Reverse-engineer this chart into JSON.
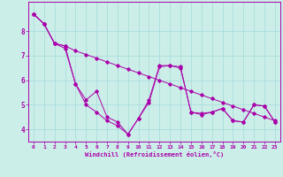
{
  "xlabel": "Windchill (Refroidissement éolien,°C)",
  "bg_color": "#cceee8",
  "line_color": "#aa00aa",
  "grid_color": "#aadddd",
  "xlim": [
    -0.5,
    23.5
  ],
  "ylim": [
    3.5,
    9.2
  ],
  "xticks": [
    0,
    1,
    2,
    3,
    4,
    5,
    6,
    7,
    8,
    9,
    10,
    11,
    12,
    13,
    14,
    15,
    16,
    17,
    18,
    19,
    20,
    21,
    22,
    23
  ],
  "yticks": [
    4,
    5,
    6,
    7,
    8
  ],
  "series": [
    [
      8.7,
      8.3,
      7.5,
      7.4,
      5.85,
      5.0,
      4.7,
      4.35,
      4.15,
      3.8,
      4.45,
      5.1,
      6.55,
      6.6,
      6.55,
      4.7,
      4.65,
      4.7,
      4.85,
      4.35,
      4.3,
      5.0,
      4.95,
      4.3
    ],
    [
      8.7,
      8.3,
      7.5,
      7.4,
      7.2,
      7.05,
      6.9,
      6.75,
      6.6,
      6.45,
      6.3,
      6.15,
      6.0,
      5.85,
      5.7,
      5.55,
      5.4,
      5.25,
      5.1,
      4.95,
      4.8,
      4.65,
      4.5,
      4.35
    ],
    [
      8.7,
      8.3,
      7.5,
      7.3,
      5.85,
      5.2,
      5.55,
      4.5,
      4.3,
      3.8,
      4.45,
      5.2,
      6.6,
      6.6,
      6.5,
      4.7,
      4.6,
      4.7,
      4.85,
      4.35,
      4.3,
      5.0,
      4.95,
      4.3
    ]
  ]
}
